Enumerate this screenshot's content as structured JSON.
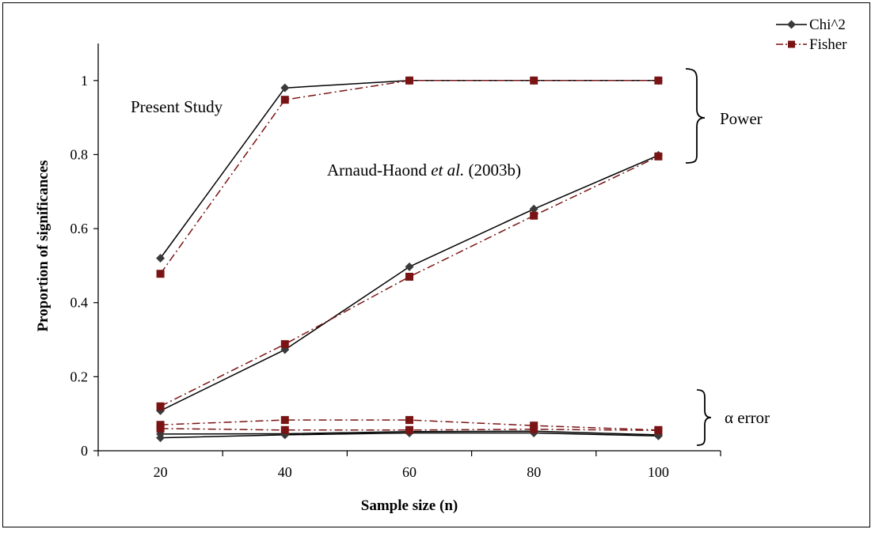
{
  "chart_data": {
    "type": "line",
    "title": "",
    "xlabel": "Sample size (n)",
    "ylabel": "Proportion of significances",
    "xlim": [
      10,
      110
    ],
    "ylim": [
      0,
      1.1
    ],
    "x_ticks": [
      20,
      40,
      60,
      80,
      100
    ],
    "x_tick_labels": [
      "20",
      "40",
      "60",
      "80",
      "100"
    ],
    "y_ticks": [
      0,
      0.2,
      0.4,
      0.6,
      0.8,
      1
    ],
    "y_tick_labels": [
      "0",
      "0.2",
      "0.4",
      "0.6",
      "0.8",
      "1"
    ],
    "grid": false,
    "legend_position": "top-right",
    "x": [
      20,
      40,
      60,
      80,
      100
    ],
    "series": [
      {
        "name": "Chi^2",
        "group": "Present Study",
        "values": [
          0.52,
          0.98,
          1.0,
          1.0,
          1.0
        ]
      },
      {
        "name": "Fisher",
        "group": "Present Study",
        "values": [
          0.478,
          0.948,
          1.0,
          1.0,
          1.0
        ]
      },
      {
        "name": "Chi^2",
        "group": "Arnaud-Haond et al. (2003b)",
        "values": [
          0.108,
          0.273,
          0.497,
          0.653,
          0.798
        ]
      },
      {
        "name": "Fisher",
        "group": "Arnaud-Haond et al. (2003b)",
        "values": [
          0.12,
          0.288,
          0.47,
          0.635,
          0.795
        ]
      },
      {
        "name": "Chi^2",
        "group": "α error",
        "values": [
          0.035,
          0.043,
          0.048,
          0.048,
          0.04
        ]
      },
      {
        "name": "Chi^2",
        "group": "α error",
        "values": [
          0.045,
          0.046,
          0.052,
          0.053,
          0.043
        ]
      },
      {
        "name": "Fisher",
        "group": "α error",
        "values": [
          0.06,
          0.056,
          0.056,
          0.058,
          0.055
        ]
      },
      {
        "name": "Fisher",
        "group": "α error",
        "values": [
          0.07,
          0.083,
          0.083,
          0.068,
          0.056
        ]
      }
    ],
    "legend": [
      {
        "label": "Chi^2",
        "color": "#000000",
        "marker": "diamond",
        "line": "solid"
      },
      {
        "label": "Fisher",
        "color": "#7a1414",
        "marker": "square",
        "line": "dash-dot"
      }
    ],
    "annotations": {
      "present_study": "Present Study",
      "arnaud_name": "Arnaud-Haond ",
      "arnaud_etal": "et al.",
      "arnaud_year": " (2003b)",
      "power": "Power",
      "alpha_error": "α error"
    },
    "colors": {
      "chi": "#000000",
      "chi_marker": "#3a3a3a",
      "fisher": "#7a1414"
    }
  }
}
